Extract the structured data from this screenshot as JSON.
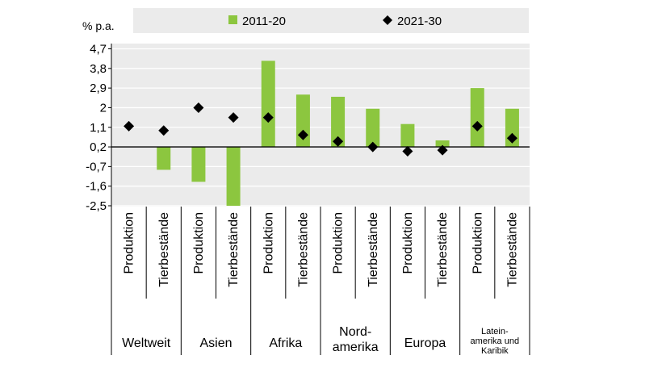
{
  "chart_data": {
    "type": "bar",
    "unit_label": "% p.a.",
    "yticks": [
      "4,7",
      "3,8",
      "2,9",
      "2",
      "1,1",
      "0,2",
      "-0,7",
      "-1,6",
      "-2,5"
    ],
    "ytick_values": [
      4.7,
      3.8,
      2.9,
      2.0,
      1.1,
      0.2,
      -0.7,
      -1.6,
      -2.5
    ],
    "ylim": [
      -2.5,
      4.7
    ],
    "grid": true,
    "legend_position": "top",
    "categories": [
      "Produktion",
      "Tierbestände",
      "Produktion",
      "Tierbestände",
      "Produktion",
      "Tierbestände",
      "Produktion",
      "Tierbestände",
      "Produktion",
      "Tierbestände",
      "Produktion",
      "Tierbestände"
    ],
    "groups": [
      {
        "lines": [
          "Weltweit"
        ],
        "small": false
      },
      {
        "lines": [
          "Asien"
        ],
        "small": false
      },
      {
        "lines": [
          "Afrika"
        ],
        "small": false
      },
      {
        "lines": [
          "Nord-",
          "amerika"
        ],
        "small": false
      },
      {
        "lines": [
          "Europa"
        ],
        "small": false
      },
      {
        "lines": [
          "Latein-",
          "amerika und",
          "Karibik"
        ],
        "small": true
      }
    ],
    "series": [
      {
        "name": "2011-20",
        "kind": "bar",
        "color": "#8cc63f",
        "values": [
          0.2,
          -0.85,
          -1.4,
          -2.5,
          4.15,
          2.6,
          2.5,
          1.95,
          1.25,
          0.5,
          2.9,
          1.95
        ]
      },
      {
        "name": "2021-30",
        "kind": "marker",
        "color": "#000000",
        "values": [
          1.15,
          0.95,
          2.0,
          1.55,
          1.55,
          0.75,
          0.45,
          0.2,
          0.0,
          0.05,
          1.15,
          0.6
        ]
      }
    ]
  },
  "colors": {
    "grid_background": "#ebebeb",
    "gridline": "#ffffff",
    "axis": "#000000"
  }
}
